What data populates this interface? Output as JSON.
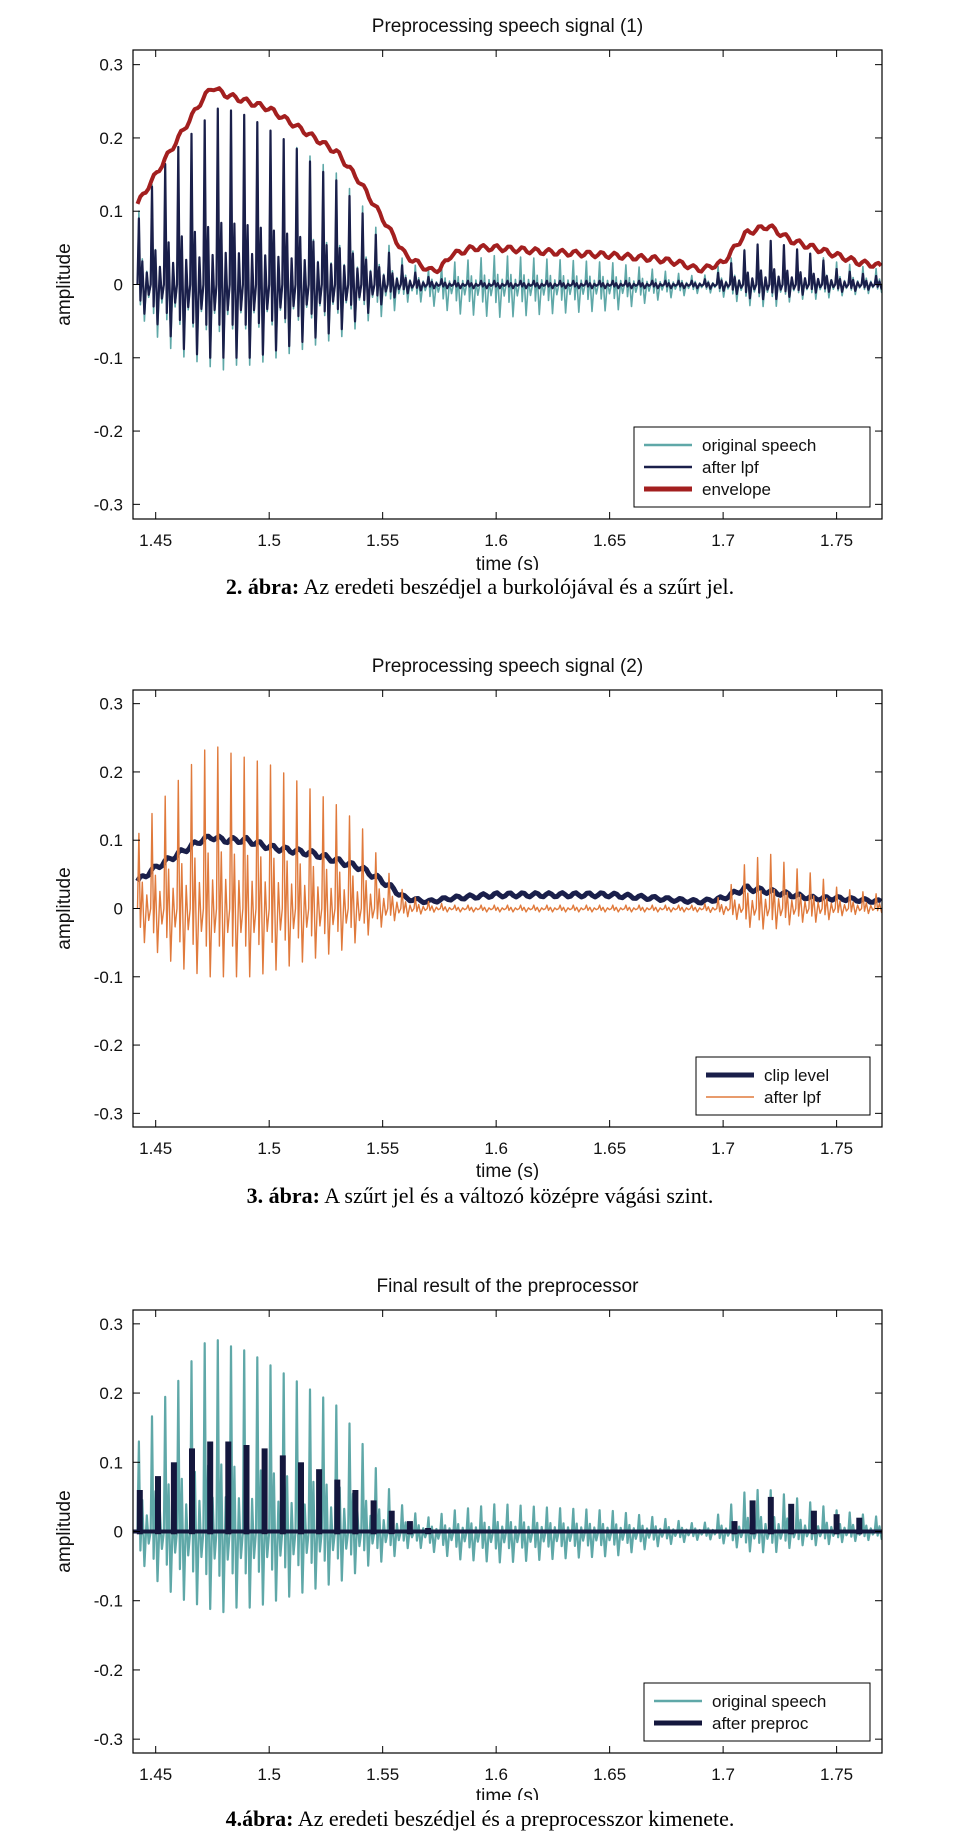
{
  "chart_data": [
    {
      "type": "line",
      "title": "Preprocessing speech signal (1)",
      "xlabel": "time (s)",
      "ylabel": "amplitude",
      "xlim": [
        1.44,
        1.77
      ],
      "ylim": [
        -0.32,
        0.32
      ],
      "xticks": [
        "1.45",
        "1.5",
        "1.55",
        "1.6",
        "1.65",
        "1.7",
        "1.75"
      ],
      "xtick_values": [
        1.45,
        1.5,
        1.55,
        1.6,
        1.65,
        1.7,
        1.75
      ],
      "yticks": [
        "0.3",
        "0.2",
        "0.1",
        "0",
        "-0.1",
        "-0.2",
        "-0.3"
      ],
      "ytick_values": [
        0.3,
        0.2,
        0.1,
        0,
        -0.1,
        -0.2,
        -0.3
      ],
      "legend_position": "bottom-right",
      "grid": false,
      "series": [
        {
          "name": "original speech",
          "color": "#5fa8a8",
          "style": "oscillation",
          "x": [
            1.442,
            1.45,
            1.46,
            1.47,
            1.475,
            1.48,
            1.49,
            1.5,
            1.51,
            1.52,
            1.53,
            1.54,
            1.55,
            1.56,
            1.57,
            1.58,
            1.6,
            1.62,
            1.65,
            1.67,
            1.69,
            1.7,
            1.71,
            1.72,
            1.73,
            1.74,
            1.75,
            1.77
          ],
          "pos": [
            0.1,
            0.15,
            0.19,
            0.22,
            0.24,
            0.24,
            0.23,
            0.21,
            0.19,
            0.17,
            0.15,
            0.11,
            0.06,
            0.03,
            0.02,
            0.03,
            0.04,
            0.035,
            0.03,
            0.02,
            0.01,
            0.03,
            0.05,
            0.06,
            0.05,
            0.04,
            0.03,
            0.02
          ],
          "neg": [
            -0.05,
            -0.08,
            -0.1,
            -0.11,
            -0.12,
            -0.11,
            -0.11,
            -0.1,
            -0.09,
            -0.08,
            -0.07,
            -0.05,
            -0.04,
            -0.02,
            -0.03,
            -0.04,
            -0.045,
            -0.04,
            -0.035,
            -0.02,
            -0.01,
            -0.02,
            -0.03,
            -0.03,
            -0.02,
            -0.02,
            -0.015,
            -0.01
          ]
        },
        {
          "name": "after lpf",
          "color": "#1a1f4a",
          "style": "oscillation",
          "x": [
            1.442,
            1.45,
            1.46,
            1.47,
            1.475,
            1.48,
            1.49,
            1.5,
            1.51,
            1.52,
            1.53,
            1.54,
            1.55,
            1.56,
            1.57,
            1.58,
            1.6,
            1.62,
            1.65,
            1.67,
            1.69,
            1.7,
            1.71,
            1.72,
            1.73,
            1.74,
            1.75,
            1.77
          ],
          "pos": [
            0.09,
            0.15,
            0.19,
            0.22,
            0.24,
            0.24,
            0.23,
            0.21,
            0.19,
            0.16,
            0.14,
            0.1,
            0.05,
            0.02,
            0.01,
            0.005,
            0.005,
            0.005,
            0.005,
            0.005,
            0.005,
            0.02,
            0.05,
            0.06,
            0.05,
            0.04,
            0.02,
            0.01
          ],
          "neg": [
            -0.04,
            -0.06,
            -0.09,
            -0.1,
            -0.1,
            -0.1,
            -0.1,
            -0.09,
            -0.08,
            -0.07,
            -0.06,
            -0.04,
            -0.02,
            -0.01,
            -0.005,
            -0.005,
            -0.005,
            -0.005,
            -0.005,
            -0.005,
            -0.005,
            -0.01,
            -0.02,
            -0.02,
            -0.015,
            -0.01,
            -0.01,
            -0.005
          ]
        },
        {
          "name": "envelope",
          "color": "#a31f1f",
          "style": "line",
          "x": [
            1.442,
            1.45,
            1.46,
            1.47,
            1.475,
            1.48,
            1.49,
            1.5,
            1.51,
            1.52,
            1.53,
            1.54,
            1.55,
            1.56,
            1.57,
            1.575,
            1.58,
            1.59,
            1.6,
            1.62,
            1.65,
            1.67,
            1.68,
            1.69,
            1.7,
            1.71,
            1.72,
            1.73,
            1.74,
            1.75,
            1.76,
            1.77
          ],
          "y": [
            0.11,
            0.15,
            0.2,
            0.25,
            0.27,
            0.26,
            0.25,
            0.24,
            0.22,
            0.2,
            0.18,
            0.14,
            0.09,
            0.04,
            0.02,
            0.02,
            0.04,
            0.05,
            0.05,
            0.045,
            0.04,
            0.035,
            0.03,
            0.02,
            0.03,
            0.07,
            0.08,
            0.06,
            0.05,
            0.04,
            0.03,
            0.025
          ]
        }
      ]
    },
    {
      "type": "line",
      "title": "Preprocessing speech signal (2)",
      "xlabel": "time (s)",
      "ylabel": "amplitude",
      "xlim": [
        1.44,
        1.77
      ],
      "ylim": [
        -0.32,
        0.32
      ],
      "xticks": [
        "1.45",
        "1.5",
        "1.55",
        "1.6",
        "1.65",
        "1.7",
        "1.75"
      ],
      "xtick_values": [
        1.45,
        1.5,
        1.55,
        1.6,
        1.65,
        1.7,
        1.75
      ],
      "yticks": [
        "0.3",
        "0.2",
        "0.1",
        "0",
        "-0.1",
        "-0.2",
        "-0.3"
      ],
      "ytick_values": [
        0.3,
        0.2,
        0.1,
        0,
        -0.1,
        -0.2,
        -0.3
      ],
      "legend_position": "bottom-right",
      "grid": false,
      "series": [
        {
          "name": "clip level",
          "color": "#1a1f4a",
          "style": "line",
          "x": [
            1.442,
            1.45,
            1.46,
            1.47,
            1.475,
            1.48,
            1.49,
            1.5,
            1.51,
            1.52,
            1.53,
            1.54,
            1.55,
            1.56,
            1.57,
            1.58,
            1.6,
            1.62,
            1.65,
            1.67,
            1.69,
            1.7,
            1.71,
            1.72,
            1.73,
            1.74,
            1.75,
            1.77
          ],
          "y": [
            0.04,
            0.06,
            0.08,
            0.1,
            0.105,
            0.1,
            0.1,
            0.09,
            0.085,
            0.08,
            0.07,
            0.06,
            0.04,
            0.015,
            0.01,
            0.015,
            0.02,
            0.02,
            0.02,
            0.015,
            0.01,
            0.015,
            0.03,
            0.025,
            0.02,
            0.015,
            0.015,
            0.01
          ]
        },
        {
          "name": "after lpf",
          "color": "#e07a3c",
          "style": "oscillation",
          "x": [
            1.442,
            1.45,
            1.46,
            1.47,
            1.475,
            1.48,
            1.49,
            1.5,
            1.51,
            1.52,
            1.53,
            1.54,
            1.55,
            1.56,
            1.57,
            1.58,
            1.6,
            1.62,
            1.65,
            1.67,
            1.69,
            1.7,
            1.71,
            1.72,
            1.73,
            1.74,
            1.75,
            1.77
          ],
          "pos": [
            0.11,
            0.15,
            0.19,
            0.23,
            0.24,
            0.23,
            0.22,
            0.21,
            0.19,
            0.17,
            0.15,
            0.12,
            0.06,
            0.02,
            0.01,
            0.005,
            0.005,
            0.005,
            0.005,
            0.005,
            0.005,
            0.02,
            0.07,
            0.08,
            0.06,
            0.05,
            0.03,
            0.02
          ],
          "neg": [
            -0.05,
            -0.07,
            -0.09,
            -0.1,
            -0.1,
            -0.1,
            -0.1,
            -0.09,
            -0.08,
            -0.07,
            -0.06,
            -0.04,
            -0.02,
            -0.01,
            -0.005,
            -0.005,
            -0.005,
            -0.005,
            -0.005,
            -0.005,
            -0.005,
            -0.01,
            -0.03,
            -0.03,
            -0.02,
            -0.02,
            -0.01,
            -0.005
          ]
        }
      ]
    },
    {
      "type": "line",
      "title": "Final result of the preprocessor",
      "xlabel": "time (s)",
      "ylabel": "amplitude",
      "xlim": [
        1.44,
        1.77
      ],
      "ylim": [
        -0.32,
        0.32
      ],
      "xticks": [
        "1.45",
        "1.5",
        "1.55",
        "1.6",
        "1.65",
        "1.7",
        "1.75"
      ],
      "xtick_values": [
        1.45,
        1.5,
        1.55,
        1.6,
        1.65,
        1.7,
        1.75
      ],
      "yticks": [
        "0.3",
        "0.2",
        "0.1",
        "0",
        "-0.1",
        "-0.2",
        "-0.3"
      ],
      "ytick_values": [
        0.3,
        0.2,
        0.1,
        0,
        -0.1,
        -0.2,
        -0.3
      ],
      "legend_position": "bottom-right",
      "grid": false,
      "series": [
        {
          "name": "original speech",
          "color": "#5fa8a8",
          "style": "oscillation",
          "x": [
            1.442,
            1.45,
            1.46,
            1.47,
            1.475,
            1.48,
            1.49,
            1.5,
            1.51,
            1.52,
            1.53,
            1.54,
            1.55,
            1.56,
            1.57,
            1.58,
            1.6,
            1.62,
            1.65,
            1.67,
            1.69,
            1.7,
            1.71,
            1.72,
            1.73,
            1.74,
            1.75,
            1.77
          ],
          "pos": [
            0.13,
            0.18,
            0.22,
            0.27,
            0.28,
            0.27,
            0.26,
            0.24,
            0.22,
            0.2,
            0.18,
            0.13,
            0.07,
            0.03,
            0.02,
            0.03,
            0.04,
            0.035,
            0.03,
            0.02,
            0.01,
            0.03,
            0.06,
            0.06,
            0.05,
            0.04,
            0.03,
            0.02
          ],
          "neg": [
            -0.05,
            -0.08,
            -0.1,
            -0.11,
            -0.12,
            -0.11,
            -0.11,
            -0.1,
            -0.09,
            -0.08,
            -0.07,
            -0.05,
            -0.04,
            -0.02,
            -0.03,
            -0.04,
            -0.045,
            -0.04,
            -0.035,
            -0.02,
            -0.01,
            -0.02,
            -0.03,
            -0.03,
            -0.02,
            -0.02,
            -0.015,
            -0.01
          ]
        },
        {
          "name": "after preproc",
          "color": "#14173d",
          "style": "pulses",
          "x": [
            1.443,
            1.451,
            1.458,
            1.466,
            1.474,
            1.482,
            1.49,
            1.498,
            1.506,
            1.514,
            1.522,
            1.53,
            1.538,
            1.546,
            1.554,
            1.562,
            1.57,
            1.705,
            1.713,
            1.721,
            1.73,
            1.74,
            1.75,
            1.76
          ],
          "y": [
            0.06,
            0.08,
            0.1,
            0.12,
            0.13,
            0.13,
            0.125,
            0.12,
            0.11,
            0.1,
            0.09,
            0.075,
            0.06,
            0.045,
            0.03,
            0.015,
            0.005,
            0.015,
            0.045,
            0.05,
            0.04,
            0.03,
            0.025,
            0.02
          ]
        }
      ]
    }
  ],
  "captions": [
    {
      "label": "2. ábra:",
      "text": " Az eredeti beszédjel a burkolójával és a szűrt jel."
    },
    {
      "label": "3. ábra:",
      "text": " A szűrt jel és a változó középre vágási szint."
    },
    {
      "label": "4.ábra:",
      "text": " Az eredeti beszédjel és a preprocesszor kimenete."
    }
  ]
}
